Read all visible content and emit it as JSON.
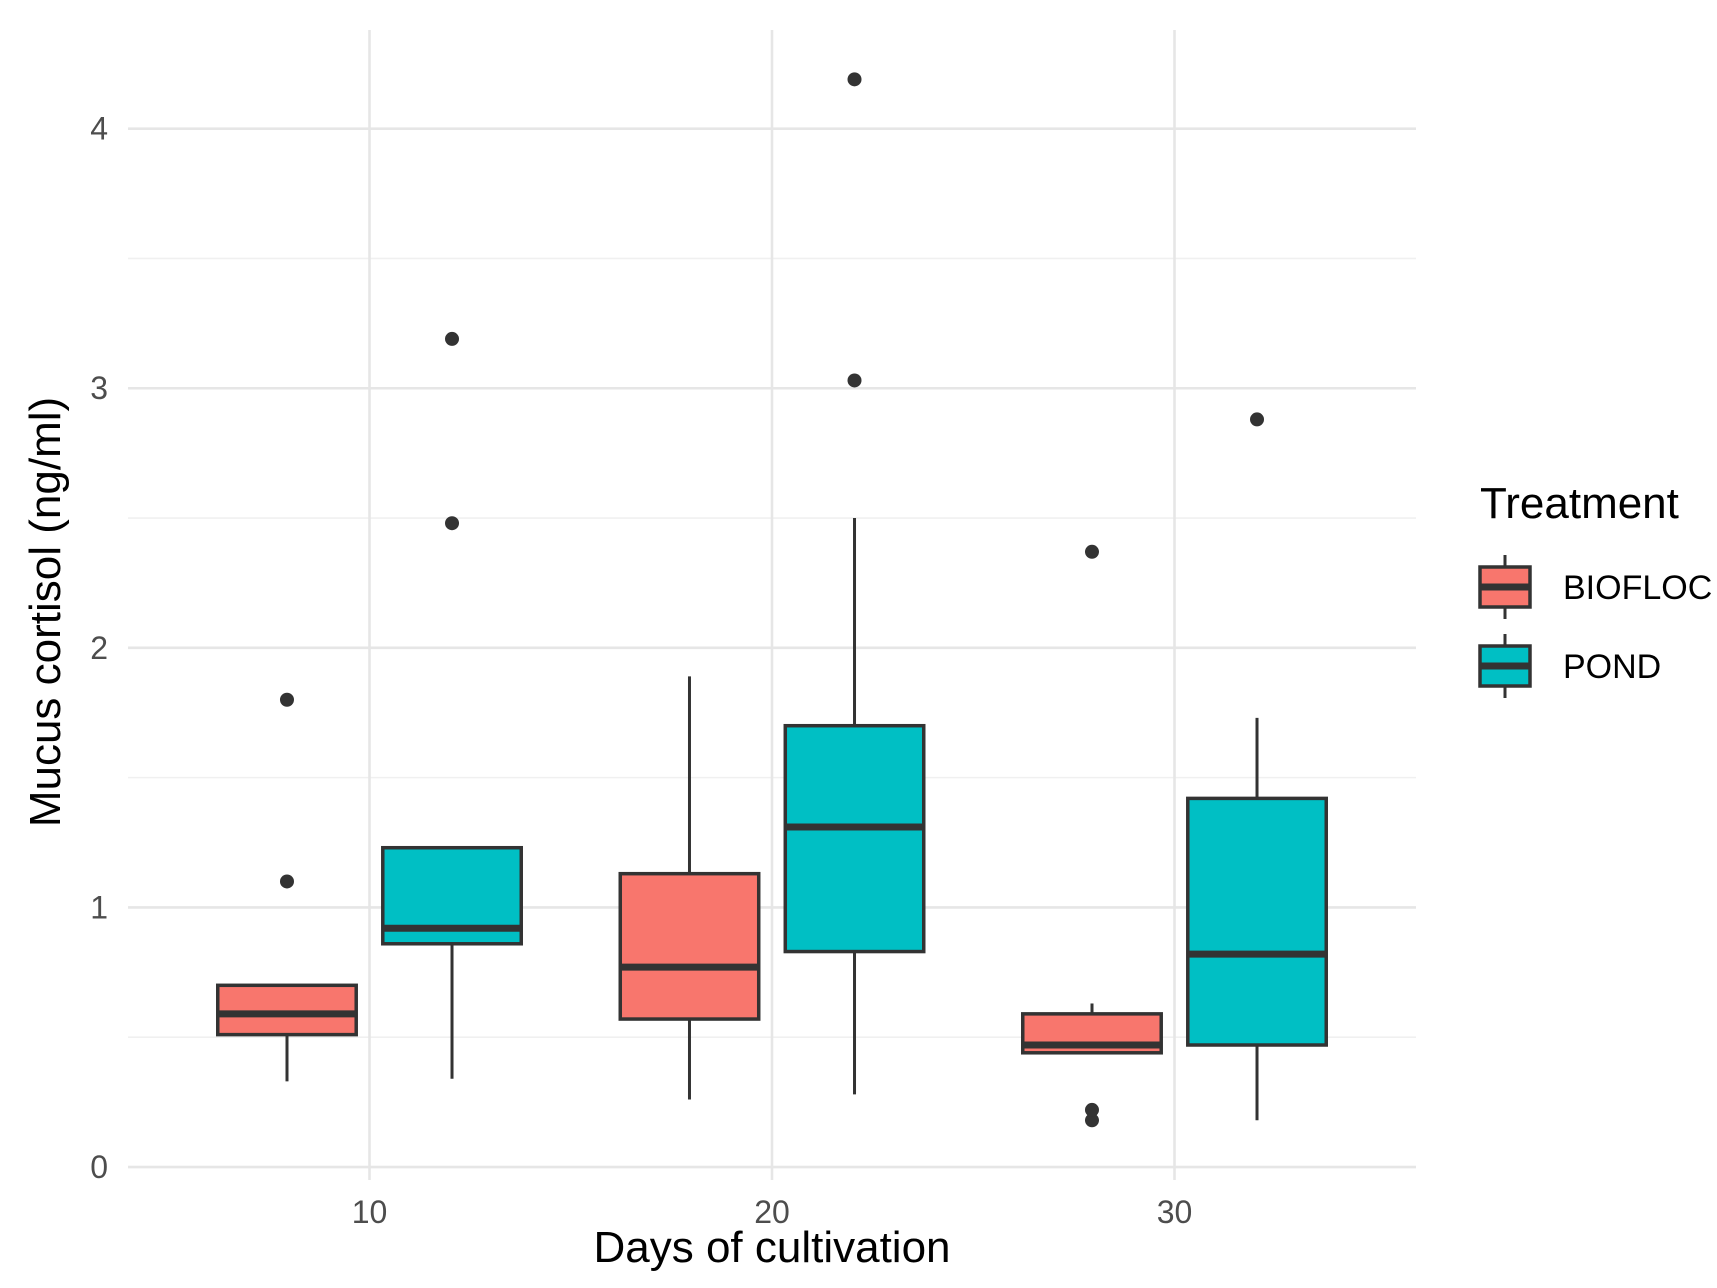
{
  "chart_data": {
    "type": "boxplot",
    "xlabel": "Days of cultivation",
    "ylabel": "Mucus cortisol (ng/ml)",
    "x_ticks": [
      "10",
      "20",
      "30"
    ],
    "y_ticks": [
      "0",
      "1",
      "2",
      "3",
      "4"
    ],
    "ylim": [
      -0.05,
      4.38
    ],
    "xlim": [
      4,
      36
    ],
    "grid": true,
    "legend": {
      "title": "Treatment",
      "position": "right",
      "entries": [
        {
          "label": "BIOFLOC",
          "color": "#F8766D"
        },
        {
          "label": "POND",
          "color": "#00BFC4"
        }
      ]
    },
    "groups": [
      {
        "x": 10,
        "boxes": [
          {
            "treatment": "BIOFLOC",
            "color": "#F8766D",
            "whisker_low": 0.33,
            "q1": 0.51,
            "median": 0.59,
            "q3": 0.7,
            "whisker_high": 0.7,
            "outliers": [
              1.1,
              1.8
            ]
          },
          {
            "treatment": "POND",
            "color": "#00BFC4",
            "whisker_low": 0.34,
            "q1": 0.86,
            "median": 0.92,
            "q3": 1.23,
            "whisker_high": 1.23,
            "outliers": [
              2.48,
              3.19
            ]
          }
        ]
      },
      {
        "x": 20,
        "boxes": [
          {
            "treatment": "BIOFLOC",
            "color": "#F8766D",
            "whisker_low": 0.26,
            "q1": 0.57,
            "median": 0.77,
            "q3": 1.13,
            "whisker_high": 1.89,
            "outliers": []
          },
          {
            "treatment": "POND",
            "color": "#00BFC4",
            "whisker_low": 0.28,
            "q1": 0.83,
            "median": 1.31,
            "q3": 1.7,
            "whisker_high": 2.5,
            "outliers": [
              3.03,
              4.19
            ]
          }
        ]
      },
      {
        "x": 30,
        "boxes": [
          {
            "treatment": "BIOFLOC",
            "color": "#F8766D",
            "whisker_low": 0.44,
            "q1": 0.44,
            "median": 0.47,
            "q3": 0.59,
            "whisker_high": 0.63,
            "outliers": [
              0.18,
              0.22,
              2.37
            ]
          },
          {
            "treatment": "POND",
            "color": "#00BFC4",
            "whisker_low": 0.18,
            "q1": 0.47,
            "median": 0.82,
            "q3": 1.42,
            "whisker_high": 1.73,
            "outliers": [
              2.88
            ]
          }
        ]
      }
    ]
  }
}
